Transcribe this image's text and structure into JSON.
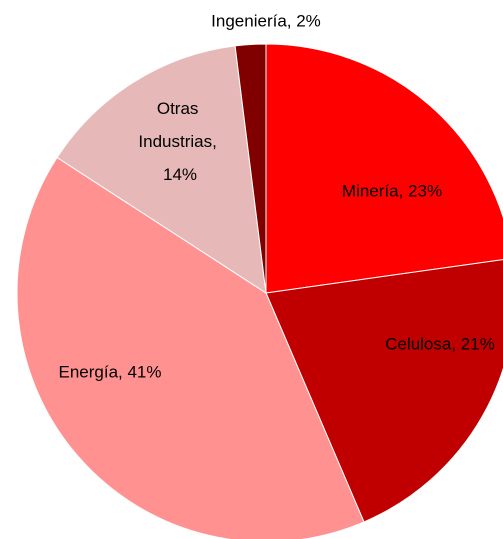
{
  "chart_data": {
    "type": "pie",
    "values": [
      23,
      21,
      41,
      14,
      2
    ],
    "value_labels": [
      "Minería, 23%",
      "Celulosa, 21%",
      "Energía, 41%",
      "Otras Industrias, 14%",
      "Ingeniería, 2%"
    ],
    "colors": [
      "#ff0000",
      "#c00000",
      "#ff9191",
      "#e6b9b8",
      "#800000"
    ]
  }
}
